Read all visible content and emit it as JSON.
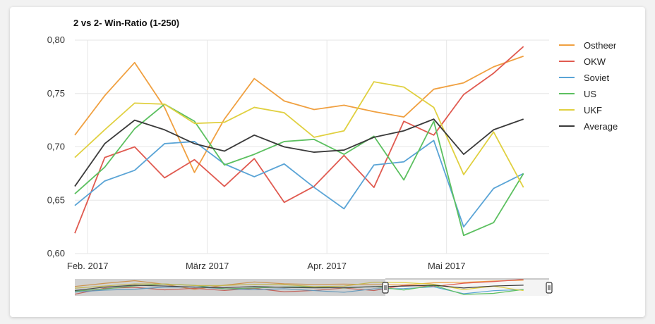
{
  "chart_data": {
    "type": "line",
    "title": "2 vs 2- Win-Ratio (1-250)",
    "xlabel": "",
    "ylabel": "",
    "ylim": [
      0.6,
      0.8
    ],
    "yticks": [
      "0,60",
      "0,65",
      "0,70",
      "0,75",
      "0,80"
    ],
    "xticks": [
      "Feb. 2017",
      "März 2017",
      "Apr. 2017",
      "Mai 2017"
    ],
    "xlim": [
      "2017-01-29",
      "2017-05-20"
    ],
    "x": [
      "2017-01-29",
      "2017-02-05",
      "2017-02-12",
      "2017-02-19",
      "2017-02-26",
      "2017-03-05",
      "2017-03-12",
      "2017-03-19",
      "2017-03-26",
      "2017-04-02",
      "2017-04-09",
      "2017-04-16",
      "2017-04-23",
      "2017-04-30",
      "2017-05-07",
      "2017-05-14",
      "2017-05-20"
    ],
    "x_index": [
      0,
      7,
      14,
      21,
      28,
      35,
      42,
      49,
      56,
      63,
      70,
      77,
      84,
      91,
      98,
      105,
      111
    ],
    "grid": true,
    "legend_position": "right",
    "series": [
      {
        "name": "Ostheer",
        "color": "#f0a040",
        "values": [
          0.711,
          0.748,
          0.779,
          0.737,
          0.676,
          0.726,
          0.764,
          0.743,
          0.735,
          0.739,
          0.733,
          0.728,
          0.754,
          0.76,
          0.775,
          0.785,
          null
        ]
      },
      {
        "name": "OKW",
        "color": "#e05a50",
        "values": [
          0.619,
          0.69,
          0.7,
          0.671,
          0.688,
          0.663,
          0.689,
          0.648,
          0.663,
          0.692,
          0.662,
          0.724,
          0.711,
          0.749,
          0.769,
          0.794,
          null
        ]
      },
      {
        "name": "Soviet",
        "color": "#5aa4d6",
        "values": [
          0.645,
          0.668,
          0.678,
          0.703,
          0.705,
          0.684,
          0.672,
          0.684,
          0.662,
          0.642,
          0.683,
          0.686,
          0.706,
          0.625,
          0.661,
          0.675,
          null
        ]
      },
      {
        "name": "US",
        "color": "#5cc060",
        "values": [
          0.656,
          0.681,
          0.717,
          0.74,
          0.724,
          0.683,
          0.693,
          0.705,
          0.707,
          0.693,
          0.71,
          0.669,
          0.724,
          0.617,
          0.629,
          0.675,
          null
        ]
      },
      {
        "name": "UKF",
        "color": "#e0d040",
        "values": [
          0.69,
          0.716,
          0.741,
          0.74,
          0.722,
          0.723,
          0.737,
          0.732,
          0.709,
          0.715,
          0.761,
          0.756,
          0.737,
          0.674,
          0.714,
          0.662,
          null
        ]
      },
      {
        "name": "Average",
        "color": "#3a3a3a",
        "values": [
          0.663,
          0.703,
          0.725,
          0.716,
          0.703,
          0.696,
          0.711,
          0.7,
          0.695,
          0.697,
          0.709,
          0.715,
          0.726,
          0.693,
          0.716,
          0.726,
          null
        ]
      }
    ]
  }
}
